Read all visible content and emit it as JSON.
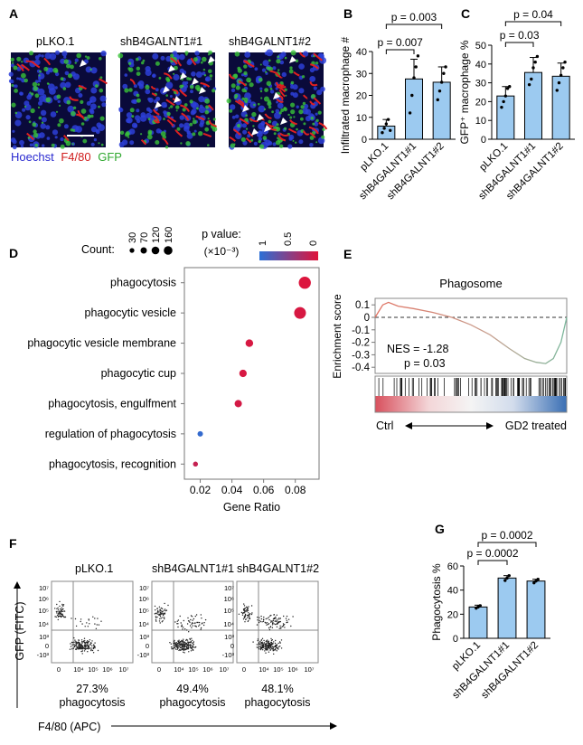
{
  "panels": {
    "A": {
      "letter": "A",
      "images": [
        {
          "label": "pLKO.1"
        },
        {
          "label": "shB4GALNT1#1"
        },
        {
          "label": "shB4GALNT1#2"
        }
      ],
      "stain_legend": [
        {
          "text": "Hoechst",
          "color": "#2a2ad0"
        },
        {
          "text": "F4/80",
          "color": "#d01c1c"
        },
        {
          "text": "GFP",
          "color": "#2fa82f"
        }
      ]
    },
    "E": {
      "letter": "E",
      "title": "Phagosome",
      "ylabel": "Enrichment score",
      "yticks": [
        "0.1",
        "0",
        "-0.1",
        "-0.2",
        "-0.3",
        "-0.4"
      ],
      "nes": "NES = -1.28",
      "p": "p = 0.03",
      "left_label": "Ctrl",
      "right_label": "GD2 treated"
    },
    "F": {
      "letter": "F",
      "plots": [
        {
          "label": "pLKO.1",
          "percent": "27.3%",
          "sub": "phagocytosis"
        },
        {
          "label": "shB4GALNT1#1",
          "percent": "49.4%",
          "sub": "phagocytosis"
        },
        {
          "label": "shB4GALNT1#2",
          "percent": "48.1%",
          "sub": "phagocytosis"
        }
      ],
      "yticks": [
        "10⁷",
        "10⁶",
        "10⁵",
        "10⁴",
        "10³",
        "0",
        "-10³"
      ],
      "xticks": [
        "0",
        "10⁴",
        "10⁵",
        "10⁶",
        "10⁷"
      ],
      "ylabel": "GFP (FITC)",
      "xlabel": "F4/80 (APC)"
    }
  },
  "chart_data": [
    {
      "id": "B",
      "letter": "B",
      "type": "bar",
      "categories": [
        "pLKO.1",
        "shB4GALNT1#1",
        "shB4GALNT1#2"
      ],
      "values": [
        6,
        27.5,
        26
      ],
      "errors": [
        3,
        9,
        7
      ],
      "points": [
        [
          3,
          5,
          7,
          9,
          4
        ],
        [
          12,
          20,
          28,
          33,
          38
        ],
        [
          18,
          22,
          26,
          30,
          33
        ]
      ],
      "ylabel": "Infiltrated macrophage #",
      "ylim": [
        0,
        40
      ],
      "yticks": [
        0,
        10,
        20,
        30,
        40
      ],
      "annotations": [
        {
          "text": "p = 0.007",
          "from": 0,
          "to": 1
        },
        {
          "text": "p = 0.003",
          "from": 0,
          "to": 2
        }
      ]
    },
    {
      "id": "C",
      "letter": "C",
      "type": "bar",
      "categories": [
        "pLKO.1",
        "shB4GALNT1#1",
        "shB4GALNT1#2"
      ],
      "values": [
        23,
        35.5,
        33.5
      ],
      "errors": [
        5,
        8,
        7
      ],
      "points": [
        [
          17,
          20,
          23,
          27,
          28
        ],
        [
          29,
          32,
          38,
          41,
          44
        ],
        [
          26,
          30,
          34,
          38,
          41
        ]
      ],
      "ylabel": "GFP⁺ macrophage %",
      "ylim": [
        0,
        50
      ],
      "yticks": [
        0,
        10,
        20,
        30,
        40,
        50
      ],
      "annotations": [
        {
          "text": "p = 0.03",
          "from": 0,
          "to": 1
        },
        {
          "text": "p = 0.04",
          "from": 0,
          "to": 2
        }
      ]
    },
    {
      "id": "D",
      "letter": "D",
      "type": "scatter",
      "terms": [
        "phagocytosis",
        "phagocytic vesicle",
        "phagocytic vesicle membrane",
        "phagocytic cup",
        "phagocytosis, engulfment",
        "regulation of phagocytosis",
        "phagocytosis, recognition"
      ],
      "gene_ratio": [
        0.086,
        0.083,
        0.051,
        0.047,
        0.044,
        0.02,
        0.017
      ],
      "count": [
        160,
        150,
        50,
        48,
        45,
        20,
        15
      ],
      "pvalue_e3": [
        0.02,
        0.05,
        0.05,
        0.05,
        0.07,
        0.95,
        0.15
      ],
      "xlabel": "Gene Ratio",
      "xlim": [
        0.01,
        0.095
      ],
      "xticks": [
        "0.02",
        "0.04",
        "0.06",
        "0.08"
      ],
      "count_legend_title": "Count:",
      "count_legend": [
        30,
        70,
        120,
        160
      ],
      "pvalue_legend_title": "p value:",
      "pvalue_legend_unit": "(×10⁻³)",
      "pvalue_legend_ticks": [
        "1",
        "0.5",
        "0"
      ],
      "colors": {
        "low": "#2b6fd6",
        "high": "#e0133a"
      }
    },
    {
      "id": "G",
      "letter": "G",
      "type": "bar",
      "categories": [
        "pLKO.1",
        "shB4GALNT1#1",
        "shB4GALNT1#2"
      ],
      "values": [
        26,
        50,
        47.5
      ],
      "errors": [
        1.5,
        2,
        1.5
      ],
      "points": [
        [
          25,
          26,
          27
        ],
        [
          48,
          50,
          52
        ],
        [
          46,
          47.5,
          49
        ]
      ],
      "ylabel": "Phagocytosis %",
      "ylim": [
        0,
        60
      ],
      "yticks": [
        0,
        20,
        40,
        60
      ],
      "annotations": [
        {
          "text": "p = 0.0002",
          "from": 0,
          "to": 1
        },
        {
          "text": "p = 0.0002",
          "from": 0,
          "to": 2
        }
      ]
    }
  ]
}
